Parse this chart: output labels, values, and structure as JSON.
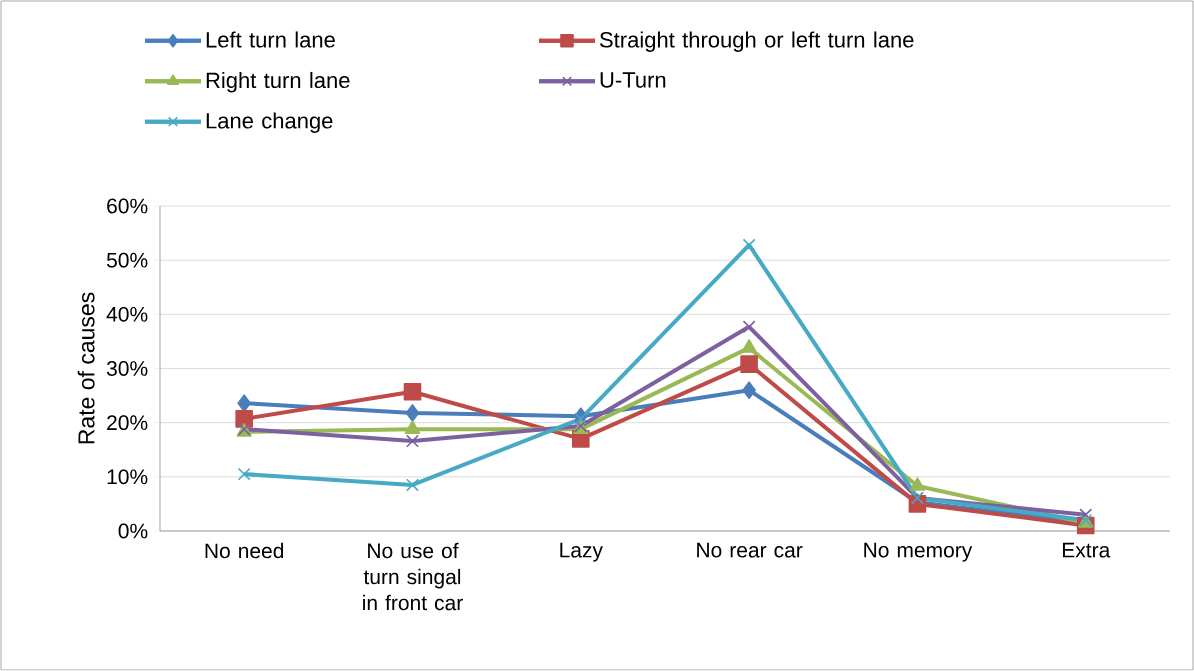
{
  "chart_data": {
    "type": "line",
    "ylabel": "Rate of causes",
    "categories": [
      "No need",
      "No use of turn singal in front car",
      "Lazy",
      "No rear car",
      "No memory",
      "Extra"
    ],
    "series": [
      {
        "name": "Left turn lane",
        "color": "#4a7ebb",
        "marker": "diamond",
        "values": [
          23.6,
          21.8,
          21.2,
          26.0,
          5.3,
          1.5
        ]
      },
      {
        "name": "Straight through or left turn lane",
        "color": "#be4b48",
        "marker": "square",
        "values": [
          20.7,
          25.7,
          17.0,
          30.8,
          5.0,
          1.0
        ]
      },
      {
        "name": "Right turn lane",
        "color": "#98b954",
        "marker": "triangle",
        "values": [
          18.3,
          18.8,
          18.8,
          33.8,
          8.3,
          1.5
        ]
      },
      {
        "name": "U-Turn",
        "color": "#7d60a0",
        "marker": "cross",
        "values": [
          18.8,
          16.6,
          19.4,
          37.7,
          6.1,
          3.0
        ]
      },
      {
        "name": "Lane change",
        "color": "#46aac5",
        "marker": "cross",
        "values": [
          10.5,
          8.5,
          20.7,
          52.8,
          6.1,
          2.0
        ]
      }
    ],
    "ylim": [
      0,
      60
    ],
    "yticks": [
      {
        "value": 0,
        "label": "0%"
      },
      {
        "value": 10,
        "label": "10%"
      },
      {
        "value": 20,
        "label": "20%"
      },
      {
        "value": 30,
        "label": "30%"
      },
      {
        "value": 40,
        "label": "40%"
      },
      {
        "value": 50,
        "label": "50%"
      },
      {
        "value": 60,
        "label": "60%"
      }
    ],
    "grid": "y",
    "legend": "top",
    "line_style": "solid"
  }
}
